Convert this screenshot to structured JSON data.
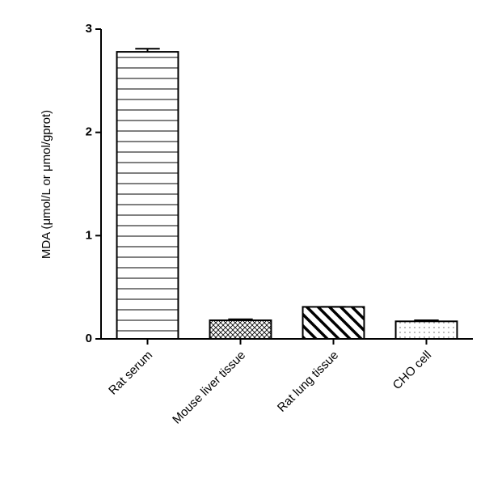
{
  "chart_data": {
    "type": "bar",
    "y_label": "MDA (μmol/L or μmol/gprot)",
    "categories": [
      "Rat serum",
      "Mouse liver tissue",
      "Rat lung tissue",
      "CHO cell"
    ],
    "values": [
      2.78,
      0.18,
      0.31,
      0.17
    ],
    "errors": [
      0.03,
      0.01,
      0,
      0.01
    ],
    "hatch": [
      "horizontal",
      "crosshatch",
      "diagonal",
      "dots"
    ],
    "color": "#000000",
    "ylim": [
      0,
      3
    ],
    "yticks": [
      0,
      1,
      2,
      3
    ],
    "grid": false
  }
}
